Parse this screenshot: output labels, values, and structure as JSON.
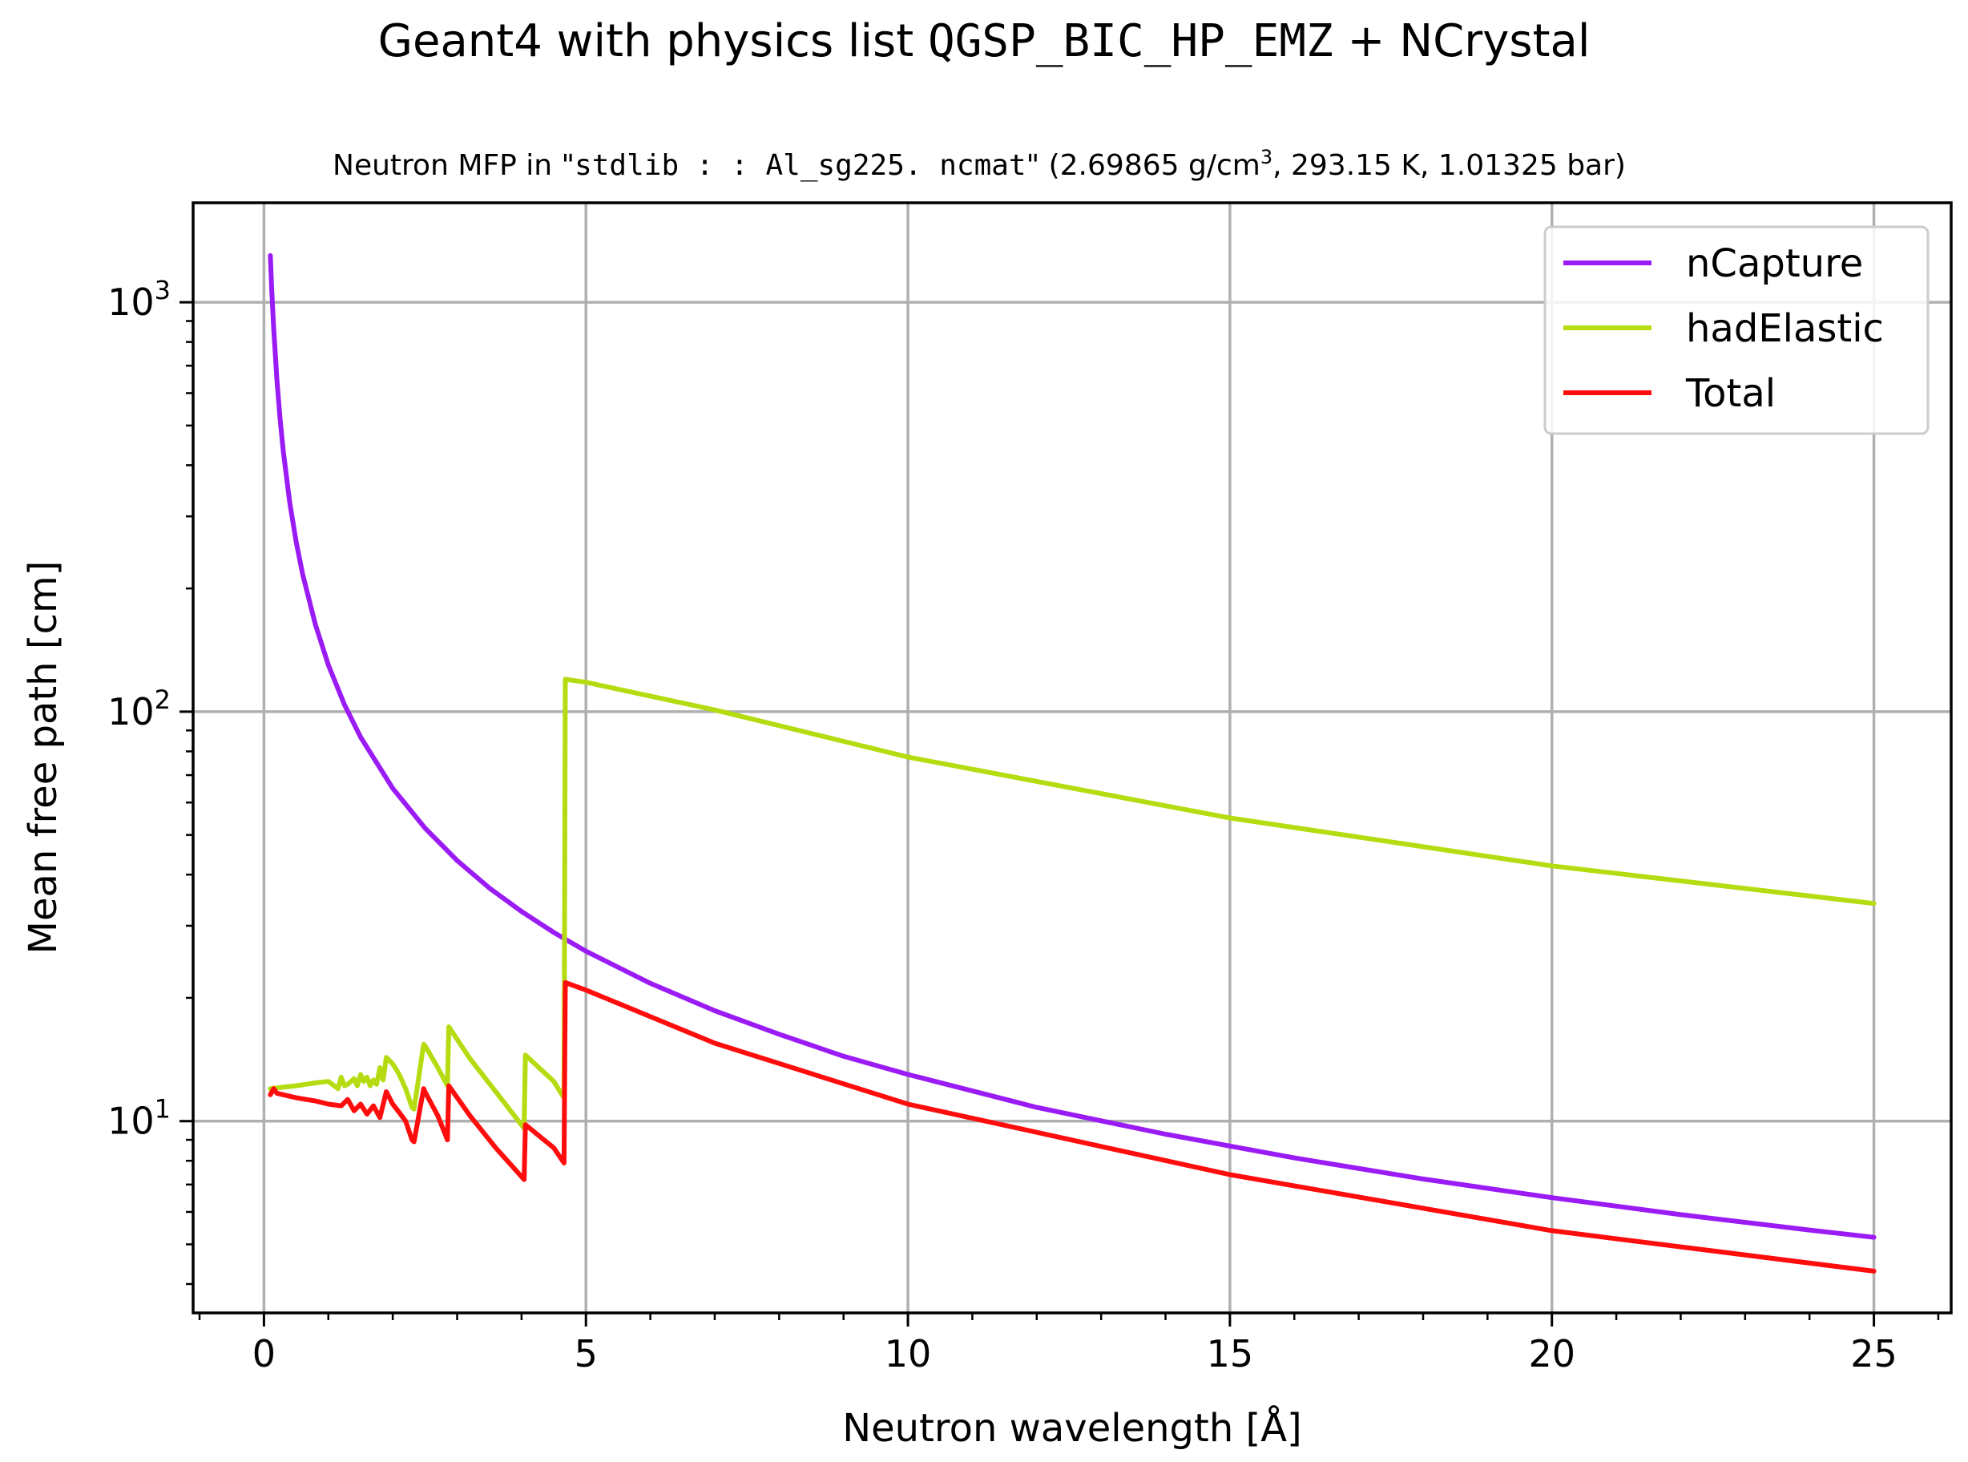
{
  "chart_data": {
    "type": "line",
    "title": {
      "prefix": "Geant4 with physics list ",
      "physics_list": "QGSP_BIC_HP_EMZ",
      "suffix": " + NCrystal"
    },
    "subtitle": {
      "prefix": "Neutron MFP in \"",
      "material": "stdlib : : Al_sg225. ncmat",
      "details_pre": "\" (2.69865 g/cm",
      "details_sup": "3",
      "details_post": ", 293.15 K, 1.01325 bar)"
    },
    "xlabel": "Neutron wavelength [Å]",
    "ylabel": "Mean free path [cm]",
    "xlim": [
      -1.1,
      26.2
    ],
    "ylim": [
      3.4,
      1750
    ],
    "yscale": "log",
    "grid": true,
    "legend_position": "top-right",
    "x_ticks": [
      0,
      5,
      10,
      15,
      20,
      25
    ],
    "x_tick_labels": [
      "0",
      "5",
      "10",
      "15",
      "20",
      "25"
    ],
    "x_minor_step": 1,
    "y_ticks": [
      {
        "value": 10,
        "base": "10",
        "exp": "1"
      },
      {
        "value": 100,
        "base": "10",
        "exp": "2"
      },
      {
        "value": 1000,
        "base": "10",
        "exp": "3"
      }
    ],
    "series": [
      {
        "name": "nCapture",
        "color": "#9b1bf5",
        "x": [
          0.1,
          0.12,
          0.15,
          0.2,
          0.25,
          0.3,
          0.4,
          0.5,
          0.6,
          0.8,
          1.0,
          1.25,
          1.5,
          2.0,
          2.5,
          3.0,
          3.5,
          4.0,
          4.5,
          5.0,
          6.0,
          7.0,
          8.0,
          9.0,
          10.0,
          12.0,
          14.0,
          16.0,
          18.0,
          20.0,
          22.0,
          24.0,
          25.0
        ],
        "y": [
          1300,
          1083,
          867,
          650,
          520,
          433,
          325,
          260,
          217,
          163,
          130,
          104,
          86.7,
          65,
          52,
          43.3,
          37.1,
          32.5,
          28.9,
          26,
          21.7,
          18.6,
          16.3,
          14.4,
          13,
          10.8,
          9.29,
          8.13,
          7.22,
          6.5,
          5.91,
          5.42,
          5.2
        ]
      },
      {
        "name": "hadElastic",
        "color": "#b5dc10",
        "x": [
          0.1,
          0.3,
          0.5,
          0.8,
          1.0,
          1.15,
          1.2,
          1.25,
          1.3,
          1.35,
          1.4,
          1.45,
          1.5,
          1.55,
          1.6,
          1.65,
          1.7,
          1.75,
          1.8,
          1.85,
          1.9,
          2.0,
          2.1,
          2.2,
          2.3,
          2.33,
          2.48,
          2.5,
          2.7,
          2.85,
          2.87,
          3.2,
          3.6,
          4.04,
          4.06,
          4.5,
          4.66,
          4.68,
          5.0,
          7.0,
          10.0,
          15.0,
          20.0,
          25.0
        ],
        "y": [
          12.0,
          12.1,
          12.2,
          12.4,
          12.5,
          12.0,
          12.8,
          12.2,
          12.3,
          12.5,
          12.7,
          12.2,
          13.0,
          12.5,
          12.8,
          12.2,
          12.6,
          12.3,
          13.5,
          12.6,
          14.3,
          13.8,
          13.0,
          12.0,
          10.8,
          10.7,
          15.4,
          15.3,
          13.5,
          12.2,
          17.0,
          14.2,
          11.8,
          9.6,
          14.5,
          12.5,
          11.4,
          120,
          118,
          101,
          77.5,
          55,
          42,
          34
        ]
      },
      {
        "name": "Total",
        "color": "#ff0d0d",
        "x": [
          0.1,
          0.15,
          0.2,
          0.3,
          0.5,
          0.8,
          1.0,
          1.2,
          1.3,
          1.4,
          1.5,
          1.6,
          1.7,
          1.8,
          1.9,
          2.0,
          2.1,
          2.2,
          2.3,
          2.33,
          2.48,
          2.5,
          2.7,
          2.85,
          2.87,
          3.2,
          3.6,
          4.04,
          4.06,
          4.5,
          4.66,
          4.68,
          5.0,
          7.0,
          10.0,
          15.0,
          20.0,
          25.0
        ],
        "y": [
          11.6,
          12.0,
          11.7,
          11.6,
          11.4,
          11.2,
          11.0,
          10.9,
          11.3,
          10.6,
          11.0,
          10.4,
          10.9,
          10.2,
          11.8,
          11.0,
          10.5,
          10.0,
          9.0,
          8.9,
          12.0,
          11.8,
          10.3,
          9.0,
          12.2,
          10.3,
          8.6,
          7.2,
          9.8,
          8.6,
          7.9,
          21.8,
          20.9,
          15.5,
          11.0,
          7.4,
          5.4,
          4.3
        ]
      }
    ]
  }
}
